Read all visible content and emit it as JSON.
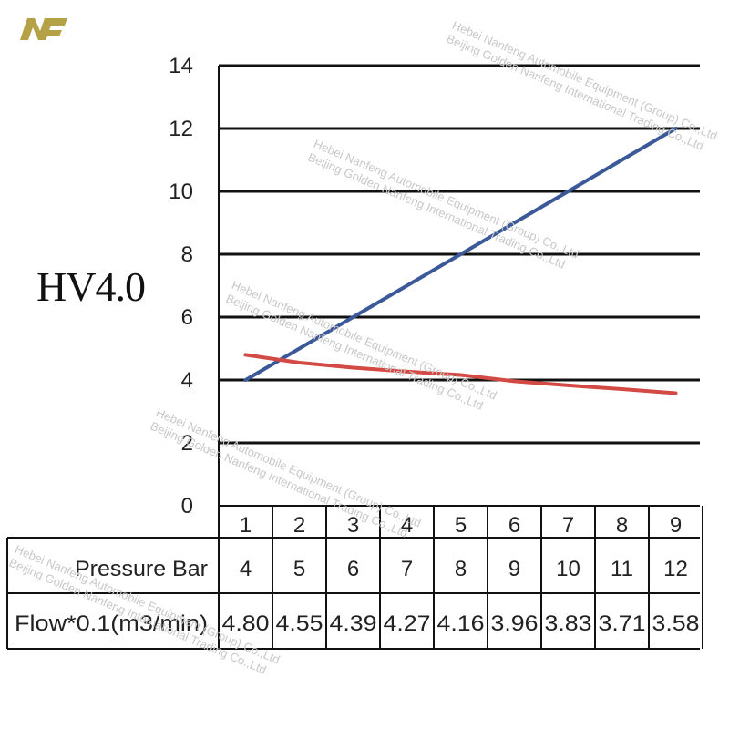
{
  "header": {
    "main_label": "HV4.0",
    "logo": "NF"
  },
  "watermark": {
    "line1": "Hebei Nanfeng Automobile Equipment (Group) Co.,Ltd",
    "line2": "Beijing Golden Nanfeng International Trading Co.,Ltd"
  },
  "chart_data": {
    "type": "line",
    "x": [
      1,
      2,
      3,
      4,
      5,
      6,
      7,
      8,
      9
    ],
    "ylim": [
      0,
      14
    ],
    "yticks": [
      0,
      2,
      4,
      6,
      8,
      10,
      12,
      14
    ],
    "grid": true,
    "series": [
      {
        "values": [
          4,
          5,
          6,
          7,
          8,
          9,
          10,
          11,
          12
        ],
        "color": "#3b5998"
      },
      {
        "values": [
          4.8,
          4.55,
          4.39,
          4.27,
          4.16,
          3.96,
          3.83,
          3.71,
          3.58
        ],
        "color": "#d24a43"
      }
    ],
    "table": {
      "rows": [
        {
          "label": "Pressure Bar",
          "values": [
            "4",
            "5",
            "6",
            "7",
            "8",
            "9",
            "10",
            "11",
            "12"
          ]
        },
        {
          "label": "Flow*0.1(m3/min)",
          "values": [
            "4.80",
            "4.55",
            "4.39",
            "4.27",
            "4.16",
            "3.96",
            "3.83",
            "3.71",
            "3.58"
          ]
        }
      ]
    }
  }
}
